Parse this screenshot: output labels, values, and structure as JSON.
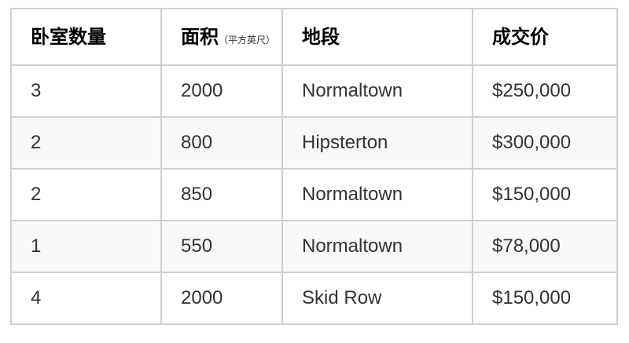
{
  "table": {
    "headers": [
      {
        "label": "卧室数量",
        "note": ""
      },
      {
        "label": "面积",
        "note": "（平方英尺）"
      },
      {
        "label": "地段",
        "note": ""
      },
      {
        "label": "成交价",
        "note": ""
      }
    ],
    "rows": [
      [
        "3",
        "2000",
        "Normaltown",
        "$250,000"
      ],
      [
        "2",
        "800",
        "Hipsterton",
        "$300,000"
      ],
      [
        "2",
        "850",
        "Normaltown",
        "$150,000"
      ],
      [
        "1",
        "550",
        "Normaltown",
        "$78,000"
      ],
      [
        "4",
        "2000",
        "Skid Row",
        "$150,000"
      ]
    ]
  },
  "colors": {
    "border": "#cfcfcf",
    "alt_row": "#f8f8f8"
  }
}
